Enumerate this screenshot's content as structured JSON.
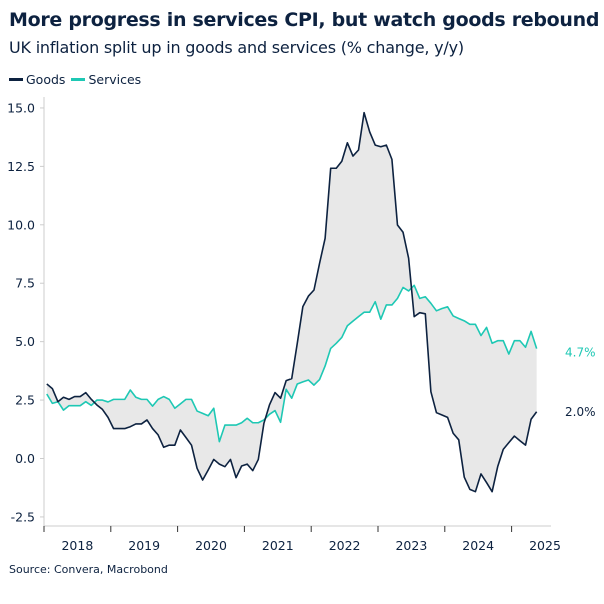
{
  "title": "More progress in services CPI, but watch goods rebound",
  "subtitle": "UK inflation split up in goods and services (% change, y/y)",
  "source": "Source: Convera, Macrobond",
  "colors": {
    "goods": "#0d2240",
    "services": "#1ec8b4",
    "fill": "#e8e8e8",
    "axis": "#cccccc"
  },
  "chart_data": {
    "type": "line",
    "title": "More progress in services CPI, but watch goods rebound",
    "subtitle": "UK inflation split up in goods and services (% change, y/y)",
    "x_start": "2018-01",
    "x_end": "2025-05",
    "x_frequency": "monthly",
    "x_tick_labels": [
      "2018",
      "2019",
      "2020",
      "2021",
      "2022",
      "2023",
      "2024",
      "2025"
    ],
    "y_tick_labels": [
      "15.0",
      "12.5",
      "10.0",
      "7.5",
      "5.0",
      "2.5",
      "0.0",
      "-2.5"
    ],
    "y_ticks": [
      15,
      12.5,
      10,
      7.5,
      5,
      2.5,
      0,
      -2.5
    ],
    "ylim": [
      -2.5,
      15
    ],
    "grid": false,
    "legend": "top-left",
    "fill_between_series": true,
    "series": [
      {
        "name": "Goods",
        "end_label": "2.0%",
        "values": [
          3.19,
          2.99,
          2.43,
          2.62,
          2.53,
          2.65,
          2.65,
          2.82,
          2.53,
          2.29,
          2.1,
          1.76,
          1.28,
          1.28,
          1.28,
          1.36,
          1.48,
          1.48,
          1.65,
          1.28,
          1.01,
          0.48,
          0.57,
          0.57,
          1.22,
          0.9,
          0.57,
          -0.42,
          -0.92,
          -0.49,
          -0.04,
          -0.24,
          -0.35,
          -0.04,
          -0.82,
          -0.32,
          -0.24,
          -0.52,
          -0.04,
          1.5,
          2.29,
          2.82,
          2.58,
          3.33,
          3.42,
          4.93,
          6.5,
          6.95,
          7.21,
          8.35,
          9.42,
          12.42,
          12.42,
          12.72,
          13.51,
          12.94,
          13.2,
          14.8,
          13.98,
          13.41,
          13.34,
          13.41,
          12.8,
          9.99,
          9.68,
          8.57,
          6.07,
          6.24,
          6.19,
          2.86,
          1.96,
          1.86,
          1.76,
          1.08,
          0.8,
          -0.8,
          -1.32,
          -1.42,
          -0.66,
          -1.03,
          -1.42,
          -0.35,
          0.39,
          0.68,
          0.96,
          0.76,
          0.57,
          1.68,
          2.0
        ]
      },
      {
        "name": "Services",
        "end_label": "4.7%",
        "values": [
          2.76,
          2.36,
          2.43,
          2.07,
          2.26,
          2.26,
          2.26,
          2.43,
          2.27,
          2.5,
          2.5,
          2.42,
          2.53,
          2.53,
          2.53,
          2.93,
          2.62,
          2.53,
          2.53,
          2.24,
          2.53,
          2.65,
          2.53,
          2.15,
          2.34,
          2.53,
          2.53,
          2.03,
          1.93,
          1.83,
          2.15,
          0.72,
          1.43,
          1.43,
          1.43,
          1.53,
          1.72,
          1.53,
          1.53,
          1.65,
          1.89,
          2.05,
          1.55,
          2.96,
          2.58,
          3.19,
          3.28,
          3.36,
          3.14,
          3.38,
          3.96,
          4.71,
          4.93,
          5.18,
          5.68,
          5.88,
          6.07,
          6.26,
          6.26,
          6.71,
          5.96,
          6.57,
          6.57,
          6.85,
          7.32,
          7.17,
          7.41,
          6.85,
          6.92,
          6.64,
          6.32,
          6.42,
          6.49,
          6.1,
          5.99,
          5.89,
          5.74,
          5.74,
          5.26,
          5.61,
          4.93,
          5.04,
          5.04,
          4.47,
          5.04,
          5.04,
          4.76,
          5.44,
          4.7
        ]
      }
    ]
  }
}
